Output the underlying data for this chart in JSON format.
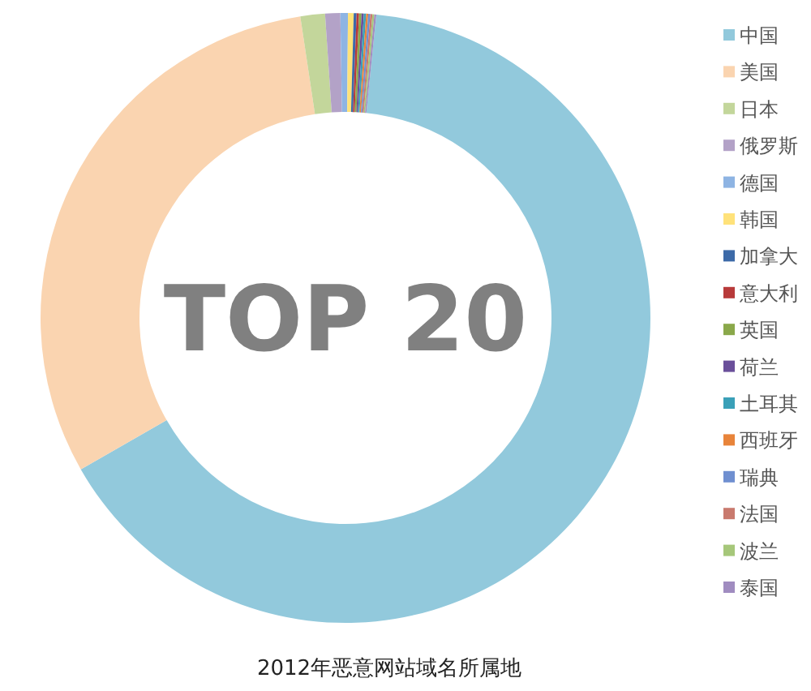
{
  "chart_data": {
    "type": "donut",
    "title": "2012年恶意网站域名所属地",
    "annotations": [
      "TOP 20"
    ],
    "legend": "right",
    "categories": [
      "中国",
      "美国",
      "日本",
      "俄罗斯",
      "德国",
      "韩国",
      "加拿大",
      "意大利",
      "英国",
      "荷兰",
      "土耳其",
      "西班牙",
      "瑞典",
      "法国",
      "波兰",
      "泰国"
    ],
    "values": [
      65.12,
      30.9,
      1.3,
      0.8,
      0.4,
      0.3,
      0.15,
      0.13,
      0.13,
      0.12,
      0.12,
      0.11,
      0.11,
      0.11,
      0.1,
      0.1
    ],
    "colors": [
      "#92c9dc",
      "#fad4b0",
      "#c3d69b",
      "#b3a2c7",
      "#8eb4e3",
      "#ffe27a",
      "#3d6aa8",
      "#b83a3a",
      "#8aa84a",
      "#6a4f9a",
      "#3aa0b8",
      "#e8843a",
      "#6f8fd0",
      "#c97a6e",
      "#a6c77a",
      "#a08cc0"
    ]
  }
}
